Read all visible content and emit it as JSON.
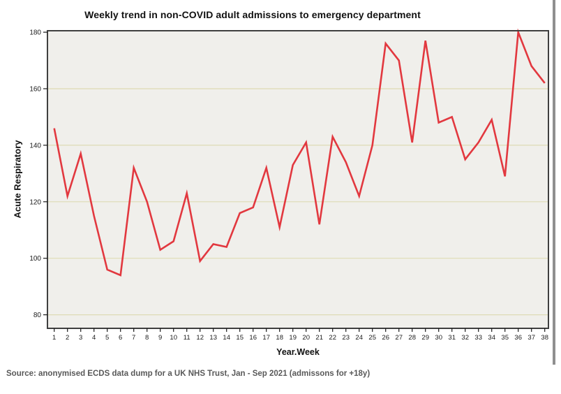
{
  "figure": {
    "title": "Weekly trend in non-COVID adult admissions to emergency department",
    "x_axis_label": "Year.Week",
    "y_axis_label": "Acute Respiratory",
    "source_note": "Source: anonymised ECDS data dump for a UK NHS Trust, Jan - Sep 2021 (admissons for +18y)"
  },
  "chart_data": {
    "type": "line",
    "title": "Weekly trend in non-COVID adult admissions to emergency department",
    "xlabel": "Year.Week",
    "ylabel": "Acute Respiratory",
    "x": [
      1,
      2,
      3,
      4,
      5,
      6,
      7,
      8,
      9,
      10,
      11,
      12,
      13,
      14,
      15,
      16,
      17,
      18,
      19,
      20,
      21,
      22,
      23,
      24,
      25,
      26,
      27,
      28,
      29,
      30,
      31,
      32,
      33,
      34,
      35,
      36,
      37,
      38
    ],
    "series": [
      {
        "name": "Acute Respiratory admissions",
        "values": [
          146,
          122,
          137,
          115,
          96,
          94,
          132,
          120,
          103,
          106,
          123,
          99,
          105,
          104,
          116,
          118,
          132,
          111,
          133,
          141,
          112,
          143,
          134,
          122,
          140,
          176,
          170,
          141,
          177,
          148,
          150,
          135,
          141,
          149,
          129,
          180,
          168,
          162
        ]
      }
    ],
    "ylim": [
      80,
      180
    ],
    "yticks": [
      80,
      100,
      120,
      140,
      160,
      180
    ],
    "grid": true,
    "legend": false,
    "colors": {
      "line": "#e2383f",
      "plot_bg": "#f0efeb",
      "gridline": "#dedbb4",
      "frame": "#3f3f3f",
      "tick_text": "#1a1a1a",
      "source_text": "#595959",
      "figure_border": "#8f8f8f"
    }
  }
}
